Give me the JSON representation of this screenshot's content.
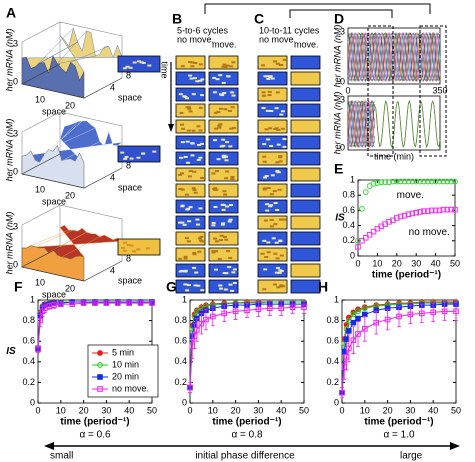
{
  "panel_a": {
    "label": "A",
    "zlabel": "her mRNA (nM)",
    "xlabel": "space",
    "ylabel": "space",
    "zticks": [
      0,
      3
    ],
    "xticks": [
      10,
      20
    ],
    "yticks": [
      4,
      8
    ]
  },
  "panel_b": {
    "label": "B",
    "title": "5-to-6 cycles",
    "columns": [
      "no move.",
      "move."
    ],
    "axis_label": "time"
  },
  "panel_c": {
    "label": "C",
    "title": "10-to-11 cycles",
    "columns": [
      "no move.",
      "move."
    ]
  },
  "panel_d": {
    "label": "D",
    "ylabel": "her mRNA (nM)",
    "yticks": [
      0,
      3
    ],
    "xticks": [
      0,
      350
    ],
    "xlabel": "time (min)"
  },
  "chart_data": [
    {
      "type": "scatter",
      "label": "E",
      "ylabel": "IS",
      "xlabel": "time (period⁻¹)",
      "labels": "inline",
      "x": [
        0,
        2,
        4,
        6,
        8,
        10,
        12,
        14,
        16,
        18,
        20,
        22,
        24,
        26,
        28,
        30,
        32,
        34,
        36,
        38,
        40,
        42,
        44,
        46,
        48,
        50
      ],
      "xlim": [
        0,
        50
      ],
      "xticks": [
        0,
        10,
        20,
        30,
        40,
        50
      ],
      "ylim": [
        0,
        1
      ],
      "yticks": [
        0,
        0.2,
        0.4,
        0.6,
        0.8,
        1
      ],
      "series": [
        {
          "name": "move.",
          "color": "#33dd33",
          "marker": "circle",
          "filled": false,
          "values": [
            0.2,
            0.62,
            0.84,
            0.92,
            0.95,
            0.96,
            0.97,
            0.97,
            0.97,
            0.98,
            0.98,
            0.98,
            0.98,
            0.98,
            0.98,
            0.98,
            0.98,
            0.98,
            0.98,
            0.98,
            0.98,
            0.98,
            0.98,
            0.98,
            0.98,
            0.98
          ]
        },
        {
          "name": "no move.",
          "color": "#ee33ee",
          "marker": "square",
          "filled": false,
          "values": [
            0.12,
            0.2,
            0.24,
            0.28,
            0.32,
            0.36,
            0.39,
            0.42,
            0.45,
            0.47,
            0.5,
            0.52,
            0.53,
            0.55,
            0.56,
            0.57,
            0.58,
            0.59,
            0.59,
            0.6,
            0.6,
            0.6,
            0.61,
            0.61,
            0.61,
            0.61
          ]
        }
      ]
    },
    {
      "type": "line",
      "label": "F",
      "ylabel": "IS",
      "xlabel": "time (period⁻¹)",
      "annotation": "α = 0.6",
      "legend": "lower-right",
      "x": [
        0,
        1,
        2,
        3,
        5,
        7,
        10,
        15,
        20,
        25,
        30,
        35,
        40,
        45,
        50
      ],
      "xlim": [
        0,
        50
      ],
      "xticks": [
        0,
        10,
        20,
        30,
        40,
        50
      ],
      "ylim": [
        0,
        1
      ],
      "yticks": [
        0,
        0.2,
        0.4,
        0.6,
        0.8,
        1
      ],
      "series": [
        {
          "name": "5 min",
          "color": "#e02020",
          "marker": "circle",
          "filled": true,
          "values": [
            0.53,
            0.88,
            0.94,
            0.96,
            0.97,
            0.98,
            0.98,
            0.98,
            0.98,
            0.98,
            0.98,
            0.98,
            0.98,
            0.98,
            0.98
          ]
        },
        {
          "name": "10 min",
          "color": "#22cc22",
          "marker": "circle",
          "filled": false,
          "values": [
            0.53,
            0.87,
            0.93,
            0.95,
            0.97,
            0.97,
            0.98,
            0.98,
            0.98,
            0.98,
            0.98,
            0.98,
            0.98,
            0.98,
            0.98
          ]
        },
        {
          "name": "20 min",
          "color": "#1030e0",
          "marker": "square",
          "filled": true,
          "values": [
            0.53,
            0.85,
            0.92,
            0.95,
            0.96,
            0.97,
            0.97,
            0.98,
            0.98,
            0.98,
            0.98,
            0.98,
            0.98,
            0.98,
            0.98
          ]
        },
        {
          "name": "no move.",
          "color": "#ee22ee",
          "marker": "square",
          "filled": false,
          "values": [
            0.52,
            0.8,
            0.89,
            0.92,
            0.94,
            0.95,
            0.96,
            0.96,
            0.97,
            0.97,
            0.97,
            0.97,
            0.97,
            0.97,
            0.97
          ],
          "errors": [
            0.03,
            0.06,
            0.05,
            0.04,
            0.03,
            0.03,
            0.02,
            0.02,
            0.02,
            0.02,
            0.02,
            0.02,
            0.02,
            0.02,
            0.02
          ]
        }
      ]
    },
    {
      "type": "line",
      "label": "G",
      "xlabel": "time (period⁻¹)",
      "annotation": "α = 0.8",
      "x": [
        0,
        1,
        2,
        3,
        5,
        7,
        10,
        15,
        20,
        25,
        30,
        35,
        40,
        45,
        50
      ],
      "xlim": [
        0,
        50
      ],
      "xticks": [
        0,
        10,
        20,
        30,
        40,
        50
      ],
      "ylim": [
        0,
        1
      ],
      "yticks": [
        0,
        0.2,
        0.4,
        0.6,
        0.8,
        1
      ],
      "series": [
        {
          "name": "5 min",
          "color": "#e02020",
          "marker": "circle",
          "filled": true,
          "values": [
            0.15,
            0.75,
            0.86,
            0.9,
            0.93,
            0.95,
            0.96,
            0.97,
            0.97,
            0.98,
            0.98,
            0.98,
            0.98,
            0.98,
            0.98
          ]
        },
        {
          "name": "10 min",
          "color": "#22cc22",
          "marker": "circle",
          "filled": false,
          "values": [
            0.15,
            0.72,
            0.84,
            0.89,
            0.92,
            0.94,
            0.95,
            0.96,
            0.97,
            0.97,
            0.97,
            0.98,
            0.98,
            0.98,
            0.98
          ]
        },
        {
          "name": "20 min",
          "color": "#1030e0",
          "marker": "square",
          "filled": true,
          "values": [
            0.15,
            0.65,
            0.76,
            0.82,
            0.87,
            0.9,
            0.92,
            0.94,
            0.95,
            0.95,
            0.96,
            0.96,
            0.96,
            0.96,
            0.96
          ]
        },
        {
          "name": "no move.",
          "color": "#ee22ee",
          "marker": "square",
          "filled": false,
          "values": [
            0.15,
            0.55,
            0.65,
            0.71,
            0.77,
            0.81,
            0.84,
            0.87,
            0.89,
            0.9,
            0.91,
            0.92,
            0.92,
            0.93,
            0.93
          ],
          "errors": [
            0.05,
            0.12,
            0.12,
            0.11,
            0.1,
            0.1,
            0.09,
            0.08,
            0.08,
            0.07,
            0.07,
            0.07,
            0.07,
            0.06,
            0.06
          ]
        }
      ]
    },
    {
      "type": "line",
      "label": "H",
      "xlabel": "time (period⁻¹)",
      "annotation": "α = 1.0",
      "x": [
        0,
        1,
        2,
        3,
        5,
        7,
        10,
        15,
        20,
        25,
        30,
        35,
        40,
        45,
        50
      ],
      "xlim": [
        0,
        50
      ],
      "xticks": [
        0,
        10,
        20,
        30,
        40,
        50
      ],
      "ylim": [
        0,
        1
      ],
      "yticks": [
        0,
        0.2,
        0.4,
        0.6,
        0.8,
        1
      ],
      "series": [
        {
          "name": "5 min",
          "color": "#e02020",
          "marker": "circle",
          "filled": true,
          "values": [
            0.1,
            0.62,
            0.76,
            0.83,
            0.88,
            0.91,
            0.93,
            0.95,
            0.96,
            0.97,
            0.97,
            0.98,
            0.98,
            0.98,
            0.98
          ]
        },
        {
          "name": "10 min",
          "color": "#22cc22",
          "marker": "circle",
          "filled": false,
          "values": [
            0.1,
            0.58,
            0.72,
            0.8,
            0.86,
            0.89,
            0.92,
            0.94,
            0.95,
            0.96,
            0.96,
            0.97,
            0.97,
            0.97,
            0.97
          ]
        },
        {
          "name": "20 min",
          "color": "#1030e0",
          "marker": "square",
          "filled": true,
          "values": [
            0.1,
            0.5,
            0.62,
            0.7,
            0.78,
            0.82,
            0.86,
            0.9,
            0.92,
            0.93,
            0.94,
            0.95,
            0.95,
            0.96,
            0.96
          ]
        },
        {
          "name": "no move.",
          "color": "#ee22ee",
          "marker": "square",
          "filled": false,
          "values": [
            0.1,
            0.35,
            0.45,
            0.53,
            0.61,
            0.67,
            0.72,
            0.78,
            0.81,
            0.84,
            0.86,
            0.87,
            0.88,
            0.89,
            0.89
          ],
          "errors": [
            0.05,
            0.12,
            0.13,
            0.13,
            0.13,
            0.12,
            0.12,
            0.11,
            0.1,
            0.1,
            0.09,
            0.09,
            0.09,
            0.09,
            0.09
          ]
        }
      ]
    }
  ],
  "footer": {
    "left": "small",
    "center": "initial phase difference",
    "right": "large"
  }
}
